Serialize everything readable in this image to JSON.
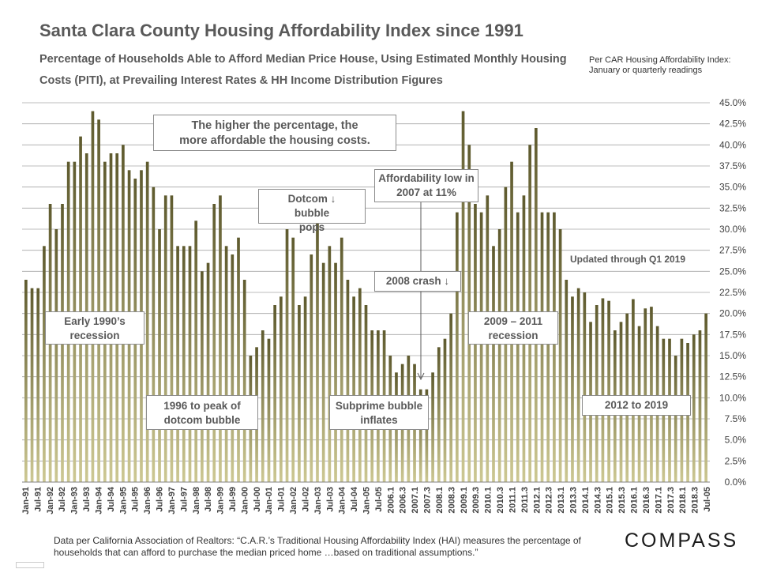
{
  "header": {
    "title": "Santa Clara County Housing Affordability Index since 1991",
    "subtitle_bold": "Percentage of Households Able to Afford Median Price House,",
    "subtitle_rest": "Using Estimated Monthly Housing Costs (PITI),  at Prevailing Interest Rates & HH Income Distribution Figures",
    "car_note": "Per CAR Housing Affordability Index: January or quarterly readings"
  },
  "annotations": {
    "higher_pct": "The higher the percentage, the more affordable the housing costs.",
    "dotcom_pops": "Dotcom ↓ bubble pops",
    "afford_low": "Affordability low in 2007 at 11%",
    "crash_2008": "2008 crash ↓",
    "updated": "Updated through Q1 2019",
    "early_1990s": "Early 1990’s recession",
    "recession_2009": "2009 – 2011 recession",
    "peak_1996": "1996 to peak of dotcom bubble",
    "subprime": "Subprime bubble inflates",
    "to_2019": "2012 to 2019"
  },
  "footer": {
    "source": "Data per California Association of Realtors: “C.A.R.’s Traditional Housing Affordability Index (HAI) measures the percentage of households that can afford  to purchase the median priced home …based on traditional assumptions.”",
    "logo": "COMPASS"
  },
  "colors": {
    "bar_top": "#5e5a2e",
    "bar_bottom": "#c9c48a",
    "grid": "#a6a6a6",
    "text": "#595959"
  },
  "chart_data": {
    "type": "bar",
    "title": "Santa Clara County Housing Affordability Index since 1991",
    "xlabel": "",
    "ylabel": "Percentage of Households Able to Afford Median Price House",
    "ylim": [
      0,
      45
    ],
    "ytick_step": 2.5,
    "y_axis_side": "right",
    "grid": true,
    "x_tick_labels": [
      "Jan-91",
      "Jul-91",
      "Jan-92",
      "Jul-92",
      "Jan-93",
      "Jul-93",
      "Jan-94",
      "Jul-94",
      "Jan-95",
      "Jul-95",
      "Jan-96",
      "Jul-96",
      "Jan-97",
      "Jul-97",
      "Jan-98",
      "Jul-98",
      "Jan-99",
      "Jul-99",
      "Jan-00",
      "Jul-00",
      "Jan-01",
      "Jul-01",
      "Jan-02",
      "Jul-02",
      "Jan-03",
      "Jul-03",
      "Jan-04",
      "Jul-04",
      "Jan-05",
      "Jul-05",
      "2006.1",
      "2006.3",
      "2007.1",
      "2007.3",
      "2008.1",
      "2008.3",
      "2009.1",
      "2009.3",
      "2010.1",
      "2010.3",
      "2011.1",
      "2011.3",
      "2012.1",
      "2012.3",
      "2013.1",
      "2013.3",
      "2014.1",
      "2014.3",
      "2015.1",
      "2015.3",
      "2016.1",
      "2016.3",
      "2017.1",
      "2017.3",
      "2018.1",
      "2018.3",
      "Jul-05"
    ],
    "values": [
      24,
      23,
      23,
      28,
      33,
      30,
      33,
      38,
      38,
      41,
      39,
      44,
      43,
      38,
      39,
      39,
      40,
      37,
      36,
      37,
      38,
      35,
      30,
      34,
      34,
      28,
      28,
      28,
      31,
      25,
      26,
      33,
      34,
      28,
      27,
      29,
      24,
      15,
      16,
      18,
      17,
      21,
      22,
      30,
      29,
      21,
      22,
      27,
      31,
      26,
      28,
      26,
      29,
      24,
      22,
      23,
      21,
      18,
      18,
      18,
      15,
      13,
      14,
      15,
      14,
      11,
      11,
      13,
      16,
      17,
      20,
      32,
      44,
      40,
      33,
      32,
      34,
      28,
      30,
      35,
      38,
      32,
      34,
      40,
      42,
      32,
      32,
      32,
      30,
      24,
      22,
      23,
      22.5,
      19,
      21,
      21.8,
      21.5,
      18,
      19,
      20,
      21.7,
      18.5,
      20.6,
      20.8,
      18.5,
      17,
      17,
      15,
      17,
      16.5,
      17.5,
      18,
      20
    ],
    "yticks": [
      "0.0%",
      "2.5%",
      "5.0%",
      "7.5%",
      "10.0%",
      "12.5%",
      "15.0%",
      "17.5%",
      "20.0%",
      "22.5%",
      "25.0%",
      "27.5%",
      "30.0%",
      "32.5%",
      "35.0%",
      "37.5%",
      "40.0%",
      "42.5%",
      "45.0%"
    ]
  }
}
